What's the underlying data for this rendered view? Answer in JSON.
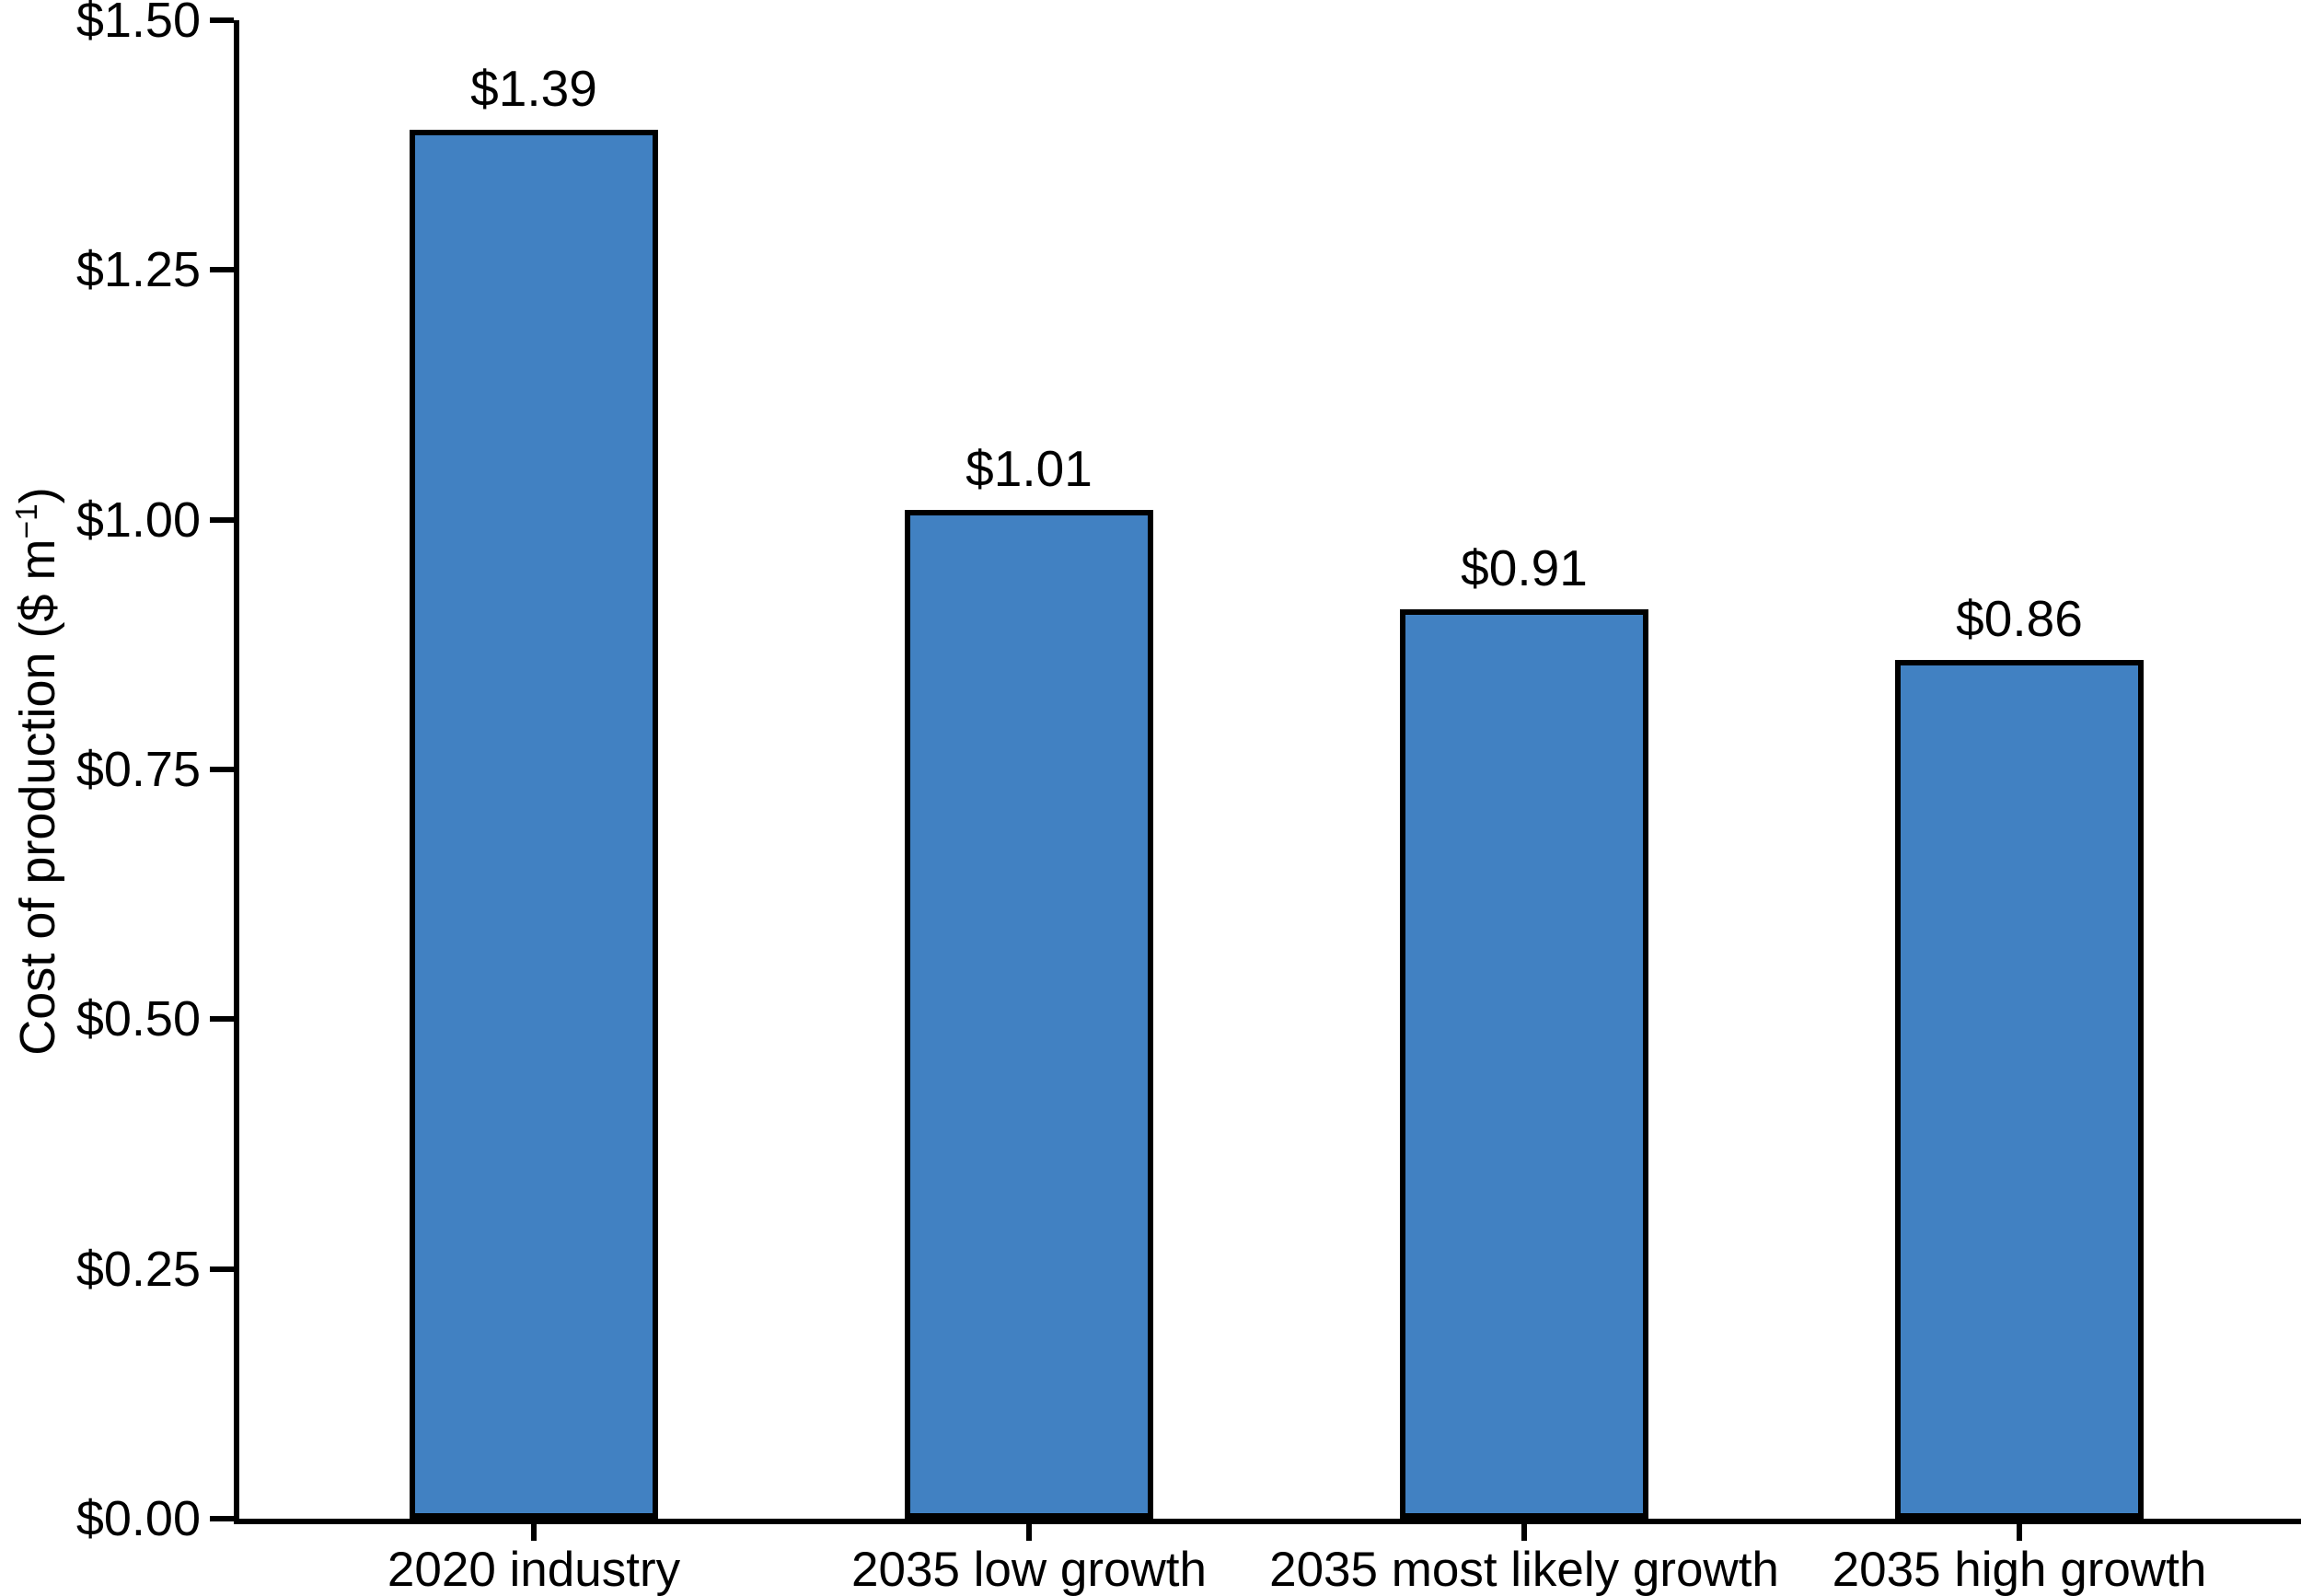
{
  "chart_data": {
    "type": "bar",
    "title": "",
    "categories": [
      "2020 industry",
      "2035 low growth",
      "2035 most likely growth",
      "2035 high growth"
    ],
    "values": [
      1.39,
      1.01,
      0.91,
      0.86
    ],
    "value_labels": [
      "$1.39",
      "$1.01",
      "$0.91",
      "$0.86"
    ],
    "ylabel": "Cost of production ($ m⁻¹)",
    "ylabel_parts": {
      "main": "Cost of production ($ m",
      "sup": "−1",
      "close": ")"
    },
    "xlabel": "",
    "ylim": [
      0,
      1.5
    ],
    "ytick_values": [
      0,
      0.25,
      0.5,
      0.75,
      1.0,
      1.25,
      1.5
    ],
    "ytick_labels": [
      "$0.00",
      "$0.25",
      "$0.50",
      "$0.75",
      "$1.00",
      "$1.25",
      "$1.50"
    ],
    "grid": false,
    "legend": "none",
    "colors": {
      "bar_fill": "#4181C2",
      "bar_edge": "#000000",
      "axis": "#000000",
      "text": "#000000",
      "background": "#FFFFFF"
    }
  }
}
